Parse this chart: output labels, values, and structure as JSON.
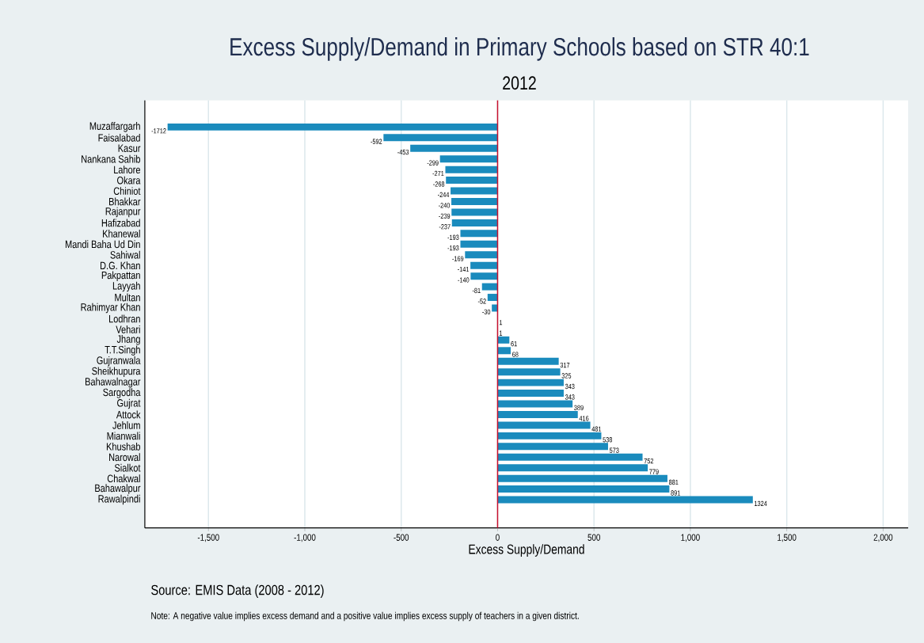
{
  "chart_data": {
    "type": "bar",
    "orientation": "horizontal",
    "title": "Excess Supply/Demand in Primary Schools based on STR 40:1",
    "subtitle": "2012",
    "xlabel": "Excess Supply/Demand",
    "annotations": [
      "Source: EMIS Data (2008 - 2012)",
      "Note: A negative value implies excess demand and a positive value implies excess supply of teachers in a given district."
    ],
    "categories": [
      "Muzaffargarh",
      "Faisalabad",
      "Kasur",
      "Nankana Sahib",
      "Lahore",
      "Okara",
      "Chiniot",
      "Bhakkar",
      "Rajanpur",
      "Hafizabad",
      "Khanewal",
      "Mandi Baha Ud Din",
      "Sahiwal",
      "D.G. Khan",
      "Pakpattan",
      "Layyah",
      "Multan",
      "Rahimyar Khan",
      "Lodhran",
      "Vehari",
      "Jhang",
      "T.T.Singh",
      "Gujranwala",
      "Sheikhupura",
      "Bahawalnagar",
      "Sargodha",
      "Gujrat",
      "Attock",
      "Jehlum",
      "Mianwali",
      "Khushab",
      "Narowal",
      "Sialkot",
      "Chakwal",
      "Bahawalpur",
      "Rawalpindi"
    ],
    "values": [
      -1712,
      -592,
      -453,
      -299,
      -271,
      -268,
      -244,
      -240,
      -239,
      -237,
      -193,
      -193,
      -169,
      -141,
      -140,
      -81,
      -52,
      -30,
      1,
      1,
      61,
      68,
      317,
      325,
      343,
      343,
      389,
      416,
      481,
      538,
      573,
      752,
      779,
      881,
      891,
      1324
    ],
    "color": "#1a8bbd",
    "data_labels": true,
    "xlim": [
      -1830,
      2130
    ],
    "xticks": [
      {
        "value": -1500,
        "label": "-1,500"
      },
      {
        "value": -1000,
        "label": "-1,000"
      },
      -500,
      0,
      500,
      {
        "value": 1000,
        "label": "1,000"
      },
      {
        "value": 1500,
        "label": "1,500"
      },
      {
        "value": 2000,
        "label": "2,000"
      }
    ],
    "grid": "x",
    "ref_lines": [
      {
        "axis": "x",
        "value": 0,
        "color": "#c8102e"
      }
    ]
  }
}
